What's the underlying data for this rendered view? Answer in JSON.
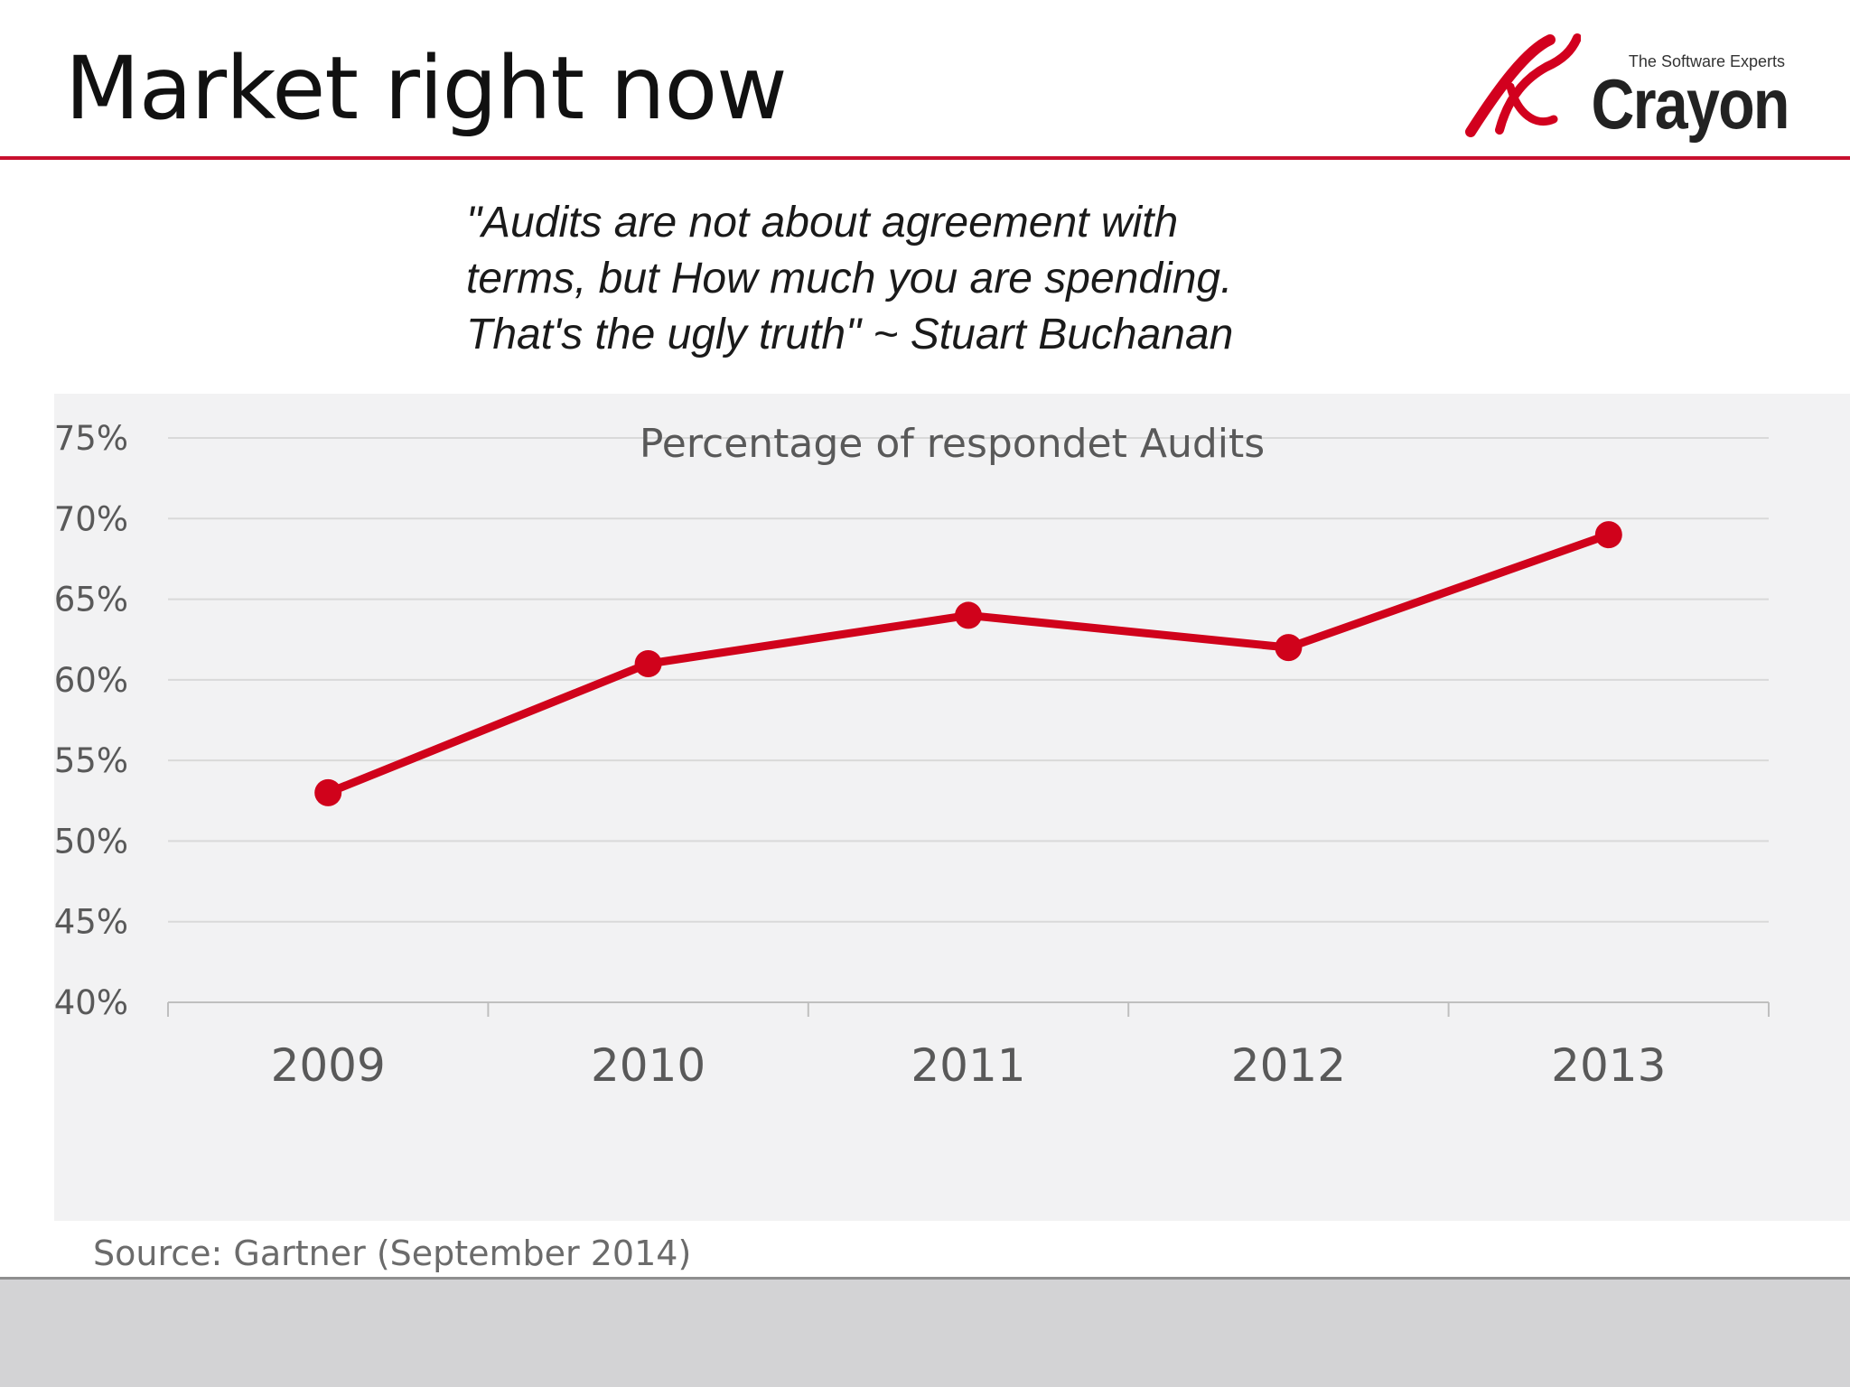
{
  "header": {
    "title": "Market right now",
    "rule_color": "#c8102e"
  },
  "logo": {
    "tagline": "The Software Experts",
    "wordmark": "Crayon",
    "icon": "crayon-logo-mark-icon",
    "accent_color": "#d2001e"
  },
  "quote": {
    "lines": [
      "\"Audits are not about agreement with",
      "terms, but How much you are spending.",
      "That's the ugly truth\" ~ Stuart Buchanan"
    ]
  },
  "chart_data": {
    "type": "line",
    "title": "Percentage of respondet Audits",
    "xlabel": "",
    "ylabel": "",
    "categories": [
      "2009",
      "2010",
      "2011",
      "2012",
      "2013"
    ],
    "series": [
      {
        "values": [
          53,
          61,
          64,
          62,
          69
        ],
        "color": "#d0021b"
      }
    ],
    "ylim": [
      40,
      75
    ],
    "ytick_step": 5,
    "ytick_format": "percent",
    "grid": true,
    "legend": "none",
    "background": "#f2f2f3"
  },
  "footer": {
    "source": "Source: Gartner (September 2014)"
  }
}
